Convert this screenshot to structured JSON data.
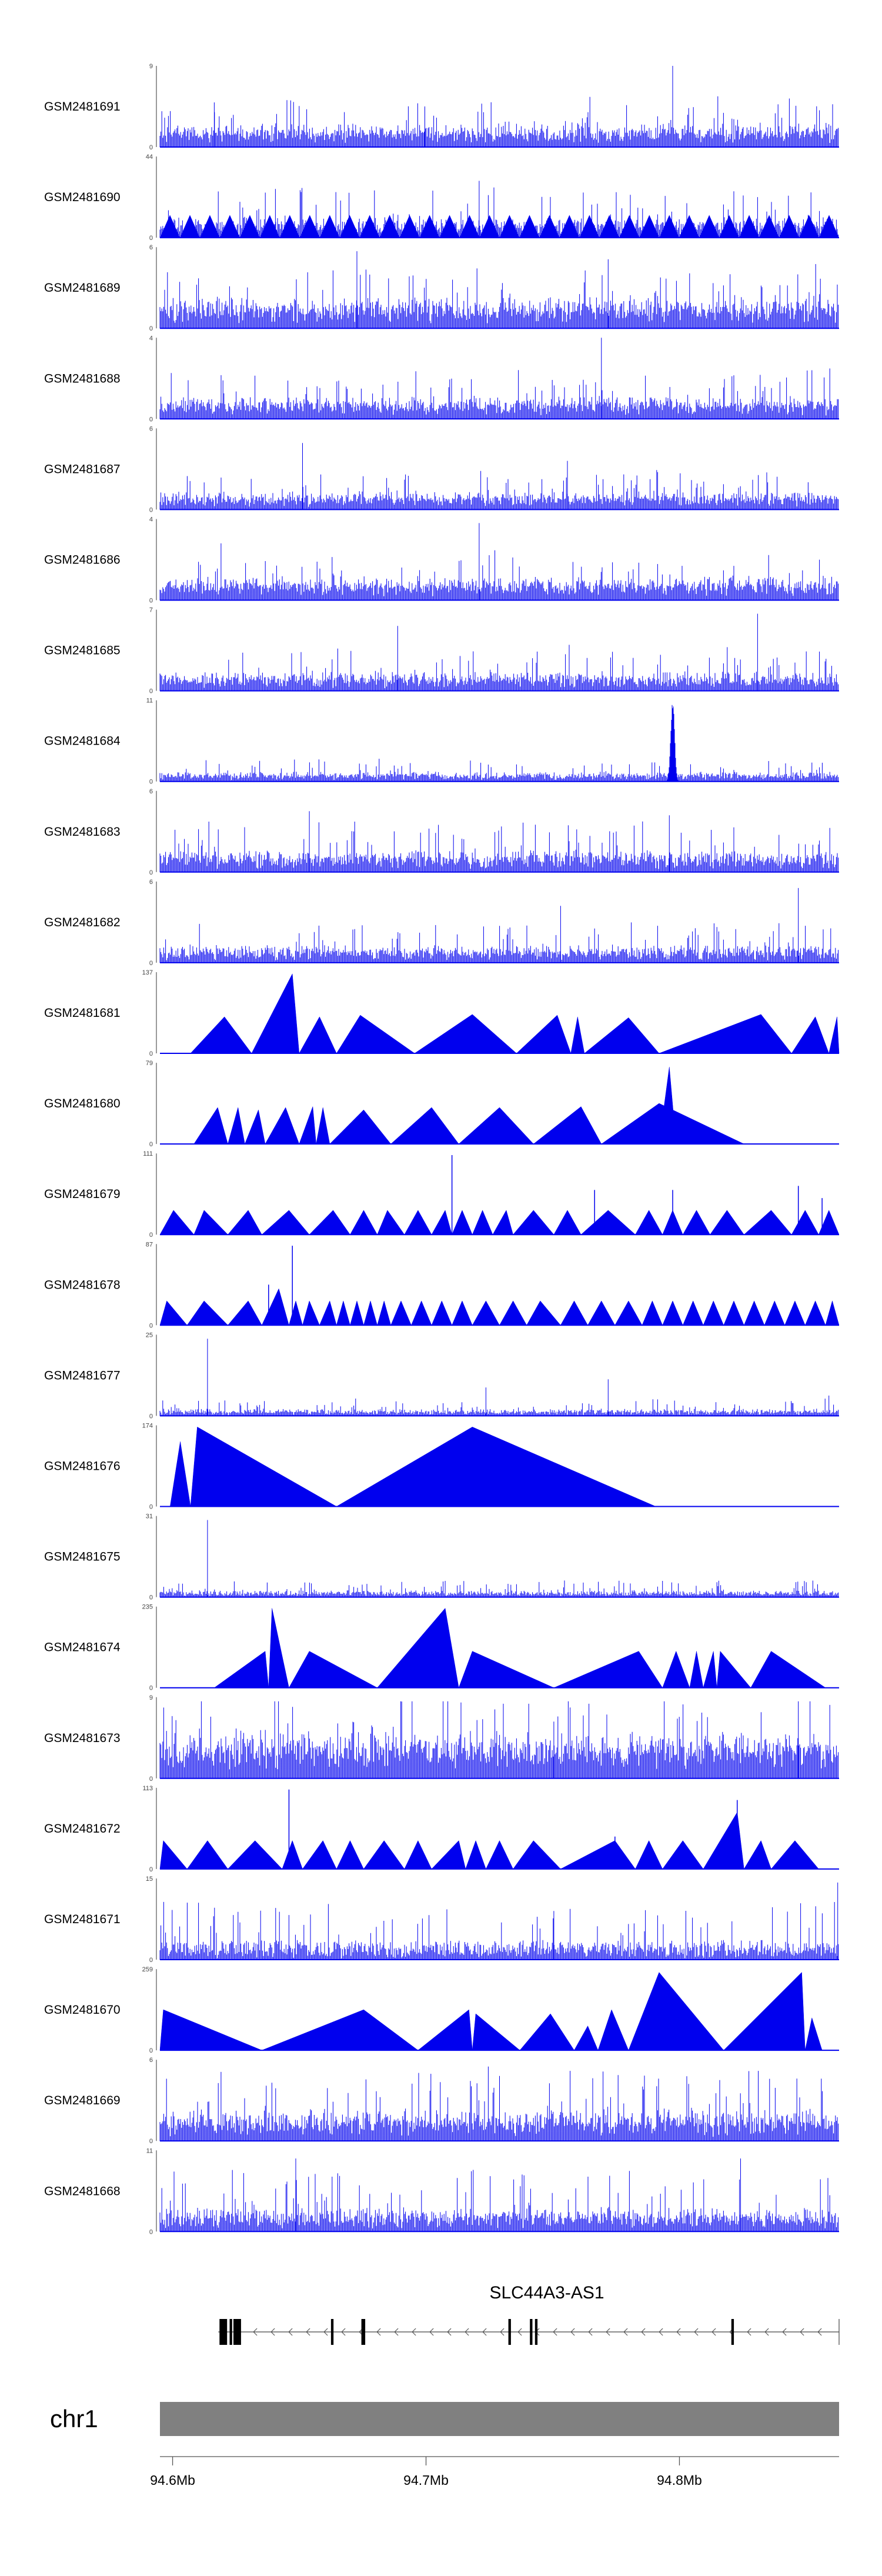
{
  "chart_data": {
    "type": "area",
    "title": "",
    "tracks": [
      {
        "name": "GSM2481691",
        "ymax": "9",
        "ymin": "0",
        "style": "dense",
        "seed": 11,
        "base": 0.13,
        "noise": 0.22,
        "spikes": [
          [
            0.755,
            1.0
          ],
          [
            0.08,
            0.55
          ],
          [
            0.39,
            0.5
          ]
        ]
      },
      {
        "name": "GSM2481690",
        "ymax": "44",
        "ymin": "0",
        "style": "mixed",
        "seed": 12,
        "base": 0.08,
        "noise": 0.25,
        "spikes": [
          [
            0.17,
            0.6
          ],
          [
            0.47,
            0.7
          ],
          [
            0.88,
            0.5
          ]
        ]
      },
      {
        "name": "GSM2481689",
        "ymax": "6",
        "ymin": "0",
        "style": "dense",
        "seed": 13,
        "base": 0.18,
        "noise": 0.28,
        "spikes": [
          [
            0.29,
            0.95
          ],
          [
            0.66,
            0.85
          ]
        ]
      },
      {
        "name": "GSM2481688",
        "ymax": "4",
        "ymin": "0",
        "style": "dense",
        "seed": 14,
        "base": 0.12,
        "noise": 0.22,
        "spikes": [
          [
            0.65,
            1.0
          ],
          [
            0.96,
            0.6
          ]
        ]
      },
      {
        "name": "GSM2481687",
        "ymax": "6",
        "ymin": "0",
        "style": "dense",
        "seed": 15,
        "base": 0.1,
        "noise": 0.18,
        "spikes": [
          [
            0.21,
            0.82
          ],
          [
            0.6,
            0.6
          ]
        ]
      },
      {
        "name": "GSM2481686",
        "ymax": "4",
        "ymin": "0",
        "style": "dense",
        "seed": 16,
        "base": 0.14,
        "noise": 0.2,
        "spikes": [
          [
            0.47,
            0.95
          ],
          [
            0.09,
            0.7
          ]
        ]
      },
      {
        "name": "GSM2481685",
        "ymax": "7",
        "ymin": "0",
        "style": "dense",
        "seed": 17,
        "base": 0.09,
        "noise": 0.22,
        "spikes": [
          [
            0.88,
            0.95
          ],
          [
            0.35,
            0.8
          ]
        ]
      },
      {
        "name": "GSM2481684",
        "ymax": "11",
        "ymin": "0",
        "style": "dense",
        "seed": 18,
        "base": 0.05,
        "noise": 0.1,
        "peak": [
          0.755,
          1.0
        ]
      },
      {
        "name": "GSM2481683",
        "ymax": "6",
        "ymin": "0",
        "style": "dense",
        "seed": 19,
        "base": 0.1,
        "noise": 0.25,
        "spikes": [
          [
            0.22,
            0.75
          ],
          [
            0.75,
            0.7
          ]
        ]
      },
      {
        "name": "GSM2481682",
        "ymax": "6",
        "ymin": "0",
        "style": "dense",
        "seed": 20,
        "base": 0.08,
        "noise": 0.2,
        "spikes": [
          [
            0.94,
            0.92
          ],
          [
            0.59,
            0.7
          ]
        ]
      },
      {
        "name": "GSM2481681",
        "ymax": "137",
        "ymin": "0",
        "style": "triangles",
        "seed": 21,
        "peaks": [
          [
            0.045,
            0.095,
            0.135,
            0.45
          ],
          [
            0.135,
            0.195,
            0.205,
            0.98
          ],
          [
            0.205,
            0.235,
            0.26,
            0.45
          ],
          [
            0.26,
            0.295,
            0.375,
            0.47
          ],
          [
            0.375,
            0.46,
            0.525,
            0.48
          ],
          [
            0.525,
            0.585,
            0.605,
            0.47
          ],
          [
            0.605,
            0.615,
            0.625,
            0.45
          ],
          [
            0.625,
            0.69,
            0.735,
            0.44
          ],
          [
            0.735,
            0.885,
            0.93,
            0.48
          ],
          [
            0.93,
            0.965,
            0.985,
            0.45
          ],
          [
            0.985,
            0.997,
            1.0,
            0.45
          ]
        ]
      },
      {
        "name": "GSM2481680",
        "ymax": "79",
        "ymin": "0",
        "style": "triangles",
        "seed": 22,
        "peaks": [
          [
            0.05,
            0.085,
            0.1,
            0.45
          ],
          [
            0.1,
            0.115,
            0.125,
            0.45
          ],
          [
            0.125,
            0.145,
            0.155,
            0.42
          ],
          [
            0.155,
            0.185,
            0.205,
            0.45
          ],
          [
            0.205,
            0.225,
            0.23,
            0.46
          ],
          [
            0.23,
            0.24,
            0.25,
            0.45
          ],
          [
            0.25,
            0.3,
            0.34,
            0.42
          ],
          [
            0.34,
            0.4,
            0.44,
            0.45
          ],
          [
            0.44,
            0.5,
            0.55,
            0.45
          ],
          [
            0.55,
            0.62,
            0.65,
            0.46
          ],
          [
            0.65,
            0.735,
            0.86,
            0.5
          ],
          [
            0.735,
            0.75,
            0.76,
            0.95
          ]
        ]
      },
      {
        "name": "GSM2481679",
        "ymax": "111",
        "ymin": "0",
        "style": "triangles",
        "seed": 23,
        "peaks": [
          [
            0.0,
            0.02,
            0.05,
            0.3
          ],
          [
            0.05,
            0.065,
            0.1,
            0.3
          ],
          [
            0.1,
            0.13,
            0.15,
            0.3
          ],
          [
            0.15,
            0.19,
            0.22,
            0.3
          ],
          [
            0.22,
            0.255,
            0.28,
            0.3
          ],
          [
            0.28,
            0.3,
            0.32,
            0.3
          ],
          [
            0.32,
            0.335,
            0.36,
            0.3
          ],
          [
            0.36,
            0.38,
            0.4,
            0.3
          ],
          [
            0.4,
            0.42,
            0.43,
            0.3
          ],
          [
            0.43,
            0.445,
            0.46,
            0.3
          ],
          [
            0.46,
            0.475,
            0.49,
            0.3
          ],
          [
            0.49,
            0.51,
            0.52,
            0.3
          ],
          [
            0.52,
            0.55,
            0.58,
            0.3
          ],
          [
            0.58,
            0.6,
            0.62,
            0.3
          ],
          [
            0.62,
            0.66,
            0.7,
            0.3
          ],
          [
            0.7,
            0.72,
            0.74,
            0.3
          ],
          [
            0.74,
            0.755,
            0.77,
            0.3
          ],
          [
            0.77,
            0.79,
            0.81,
            0.3
          ],
          [
            0.81,
            0.835,
            0.86,
            0.3
          ],
          [
            0.86,
            0.9,
            0.93,
            0.3
          ],
          [
            0.93,
            0.95,
            0.97,
            0.3
          ],
          [
            0.97,
            0.985,
            1.0,
            0.3
          ]
        ],
        "spikes": [
          [
            0.43,
            0.98
          ],
          [
            0.64,
            0.55
          ],
          [
            0.755,
            0.55
          ],
          [
            0.94,
            0.6
          ],
          [
            0.975,
            0.45
          ]
        ]
      },
      {
        "name": "GSM2481678",
        "ymax": "87",
        "ymin": "0",
        "style": "triangles",
        "seed": 24,
        "peaks": [
          [
            0.0,
            0.01,
            0.04,
            0.3
          ],
          [
            0.04,
            0.065,
            0.1,
            0.3
          ],
          [
            0.1,
            0.13,
            0.15,
            0.3
          ],
          [
            0.15,
            0.175,
            0.19,
            0.45
          ],
          [
            0.19,
            0.2,
            0.21,
            0.3
          ],
          [
            0.21,
            0.22,
            0.235,
            0.3
          ],
          [
            0.235,
            0.25,
            0.26,
            0.3
          ],
          [
            0.26,
            0.27,
            0.28,
            0.3
          ],
          [
            0.28,
            0.29,
            0.3,
            0.3
          ],
          [
            0.3,
            0.31,
            0.32,
            0.3
          ],
          [
            0.32,
            0.33,
            0.34,
            0.3
          ],
          [
            0.34,
            0.355,
            0.37,
            0.3
          ],
          [
            0.37,
            0.385,
            0.4,
            0.3
          ],
          [
            0.4,
            0.415,
            0.43,
            0.3
          ],
          [
            0.43,
            0.445,
            0.46,
            0.3
          ],
          [
            0.46,
            0.48,
            0.5,
            0.3
          ],
          [
            0.5,
            0.52,
            0.54,
            0.3
          ],
          [
            0.54,
            0.56,
            0.59,
            0.3
          ],
          [
            0.59,
            0.61,
            0.63,
            0.3
          ],
          [
            0.63,
            0.65,
            0.67,
            0.3
          ],
          [
            0.67,
            0.69,
            0.71,
            0.3
          ],
          [
            0.71,
            0.725,
            0.74,
            0.3
          ],
          [
            0.74,
            0.755,
            0.77,
            0.3
          ],
          [
            0.77,
            0.785,
            0.8,
            0.3
          ],
          [
            0.8,
            0.815,
            0.83,
            0.3
          ],
          [
            0.83,
            0.845,
            0.86,
            0.3
          ],
          [
            0.86,
            0.875,
            0.89,
            0.3
          ],
          [
            0.89,
            0.905,
            0.92,
            0.3
          ],
          [
            0.92,
            0.935,
            0.95,
            0.3
          ],
          [
            0.95,
            0.965,
            0.98,
            0.3
          ],
          [
            0.98,
            0.99,
            1.0,
            0.3
          ]
        ],
        "spikes": [
          [
            0.195,
            0.98
          ],
          [
            0.16,
            0.5
          ]
        ]
      },
      {
        "name": "GSM2481677",
        "ymax": "25",
        "ymin": "0",
        "style": "dense",
        "seed": 25,
        "base": 0.03,
        "noise": 0.08,
        "spikes": [
          [
            0.07,
            0.95
          ],
          [
            0.48,
            0.35
          ],
          [
            0.66,
            0.45
          ],
          [
            0.985,
            0.25
          ]
        ]
      },
      {
        "name": "GSM2481676",
        "ymax": "174",
        "ymin": "0",
        "style": "triangles",
        "seed": 26,
        "peaks": [
          [
            0.015,
            0.03,
            0.045,
            0.8
          ],
          [
            0.045,
            0.055,
            0.26,
            0.98
          ],
          [
            0.26,
            0.46,
            0.73,
            0.98
          ]
        ]
      },
      {
        "name": "GSM2481675",
        "ymax": "31",
        "ymin": "0",
        "style": "dense",
        "seed": 27,
        "base": 0.03,
        "noise": 0.08,
        "spikes": [
          [
            0.07,
            0.95
          ],
          [
            0.42,
            0.2
          ],
          [
            0.74,
            0.2
          ]
        ]
      },
      {
        "name": "GSM2481674",
        "ymax": "235",
        "ymin": "0",
        "style": "triangles",
        "seed": 28,
        "peaks": [
          [
            0.08,
            0.155,
            0.16,
            0.45
          ],
          [
            0.16,
            0.165,
            0.19,
            0.98
          ],
          [
            0.19,
            0.22,
            0.32,
            0.45
          ],
          [
            0.32,
            0.42,
            0.44,
            0.98
          ],
          [
            0.44,
            0.46,
            0.58,
            0.45
          ],
          [
            0.58,
            0.705,
            0.74,
            0.45
          ],
          [
            0.74,
            0.76,
            0.78,
            0.45
          ],
          [
            0.78,
            0.79,
            0.8,
            0.45
          ],
          [
            0.8,
            0.815,
            0.82,
            0.45
          ],
          [
            0.82,
            0.825,
            0.87,
            0.45
          ],
          [
            0.87,
            0.9,
            0.98,
            0.45
          ]
        ]
      },
      {
        "name": "GSM2481673",
        "ymax": "9",
        "ymin": "0",
        "style": "dense",
        "seed": 29,
        "base": 0.3,
        "noise": 0.35,
        "spikes": [
          [
            0.94,
            0.95
          ],
          [
            0.58,
            0.7
          ]
        ]
      },
      {
        "name": "GSM2481672",
        "ymax": "113",
        "ymin": "0",
        "style": "triangles",
        "seed": 30,
        "peaks": [
          [
            0.0,
            0.005,
            0.04,
            0.35
          ],
          [
            0.04,
            0.07,
            0.1,
            0.35
          ],
          [
            0.1,
            0.14,
            0.18,
            0.35
          ],
          [
            0.18,
            0.195,
            0.21,
            0.35
          ],
          [
            0.21,
            0.24,
            0.26,
            0.35
          ],
          [
            0.26,
            0.28,
            0.3,
            0.35
          ],
          [
            0.3,
            0.33,
            0.36,
            0.35
          ],
          [
            0.36,
            0.38,
            0.4,
            0.35
          ],
          [
            0.4,
            0.44,
            0.45,
            0.35
          ],
          [
            0.45,
            0.465,
            0.48,
            0.35
          ],
          [
            0.48,
            0.5,
            0.52,
            0.35
          ],
          [
            0.52,
            0.55,
            0.59,
            0.35
          ],
          [
            0.59,
            0.67,
            0.7,
            0.35
          ],
          [
            0.7,
            0.72,
            0.74,
            0.35
          ],
          [
            0.74,
            0.77,
            0.8,
            0.35
          ],
          [
            0.8,
            0.85,
            0.86,
            0.7
          ],
          [
            0.86,
            0.885,
            0.9,
            0.35
          ],
          [
            0.9,
            0.935,
            0.97,
            0.35
          ]
        ],
        "spikes": [
          [
            0.19,
            0.98
          ],
          [
            0.85,
            0.85
          ],
          [
            0.67,
            0.4
          ]
        ]
      },
      {
        "name": "GSM2481671",
        "ymax": "15",
        "ymin": "0",
        "style": "dense",
        "seed": 31,
        "base": 0.05,
        "noise": 0.3,
        "spikes": [
          [
            0.998,
            0.95
          ],
          [
            0.19,
            0.55
          ],
          [
            0.58,
            0.6
          ]
        ]
      },
      {
        "name": "GSM2481670",
        "ymax": "259",
        "ymin": "0",
        "style": "triangles",
        "seed": 32,
        "peaks": [
          [
            0.0,
            0.005,
            0.15,
            0.5
          ],
          [
            0.15,
            0.3,
            0.38,
            0.5
          ],
          [
            0.38,
            0.455,
            0.46,
            0.5
          ],
          [
            0.46,
            0.465,
            0.53,
            0.45
          ],
          [
            0.53,
            0.575,
            0.61,
            0.45
          ],
          [
            0.61,
            0.63,
            0.645,
            0.3
          ],
          [
            0.645,
            0.665,
            0.69,
            0.5
          ],
          [
            0.69,
            0.735,
            0.83,
            0.96
          ],
          [
            0.83,
            0.945,
            0.95,
            0.96
          ],
          [
            0.95,
            0.96,
            0.975,
            0.4
          ]
        ]
      },
      {
        "name": "GSM2481669",
        "ymax": "6",
        "ymin": "0",
        "style": "dense",
        "seed": 33,
        "base": 0.15,
        "noise": 0.35,
        "spikes": [
          [
            0.09,
            0.85
          ],
          [
            0.5,
            0.8
          ]
        ]
      },
      {
        "name": "GSM2481668",
        "ymax": "11",
        "ymin": "0",
        "style": "dense",
        "seed": 34,
        "base": 0.1,
        "noise": 0.3,
        "spikes": [
          [
            0.855,
            0.9
          ],
          [
            0.2,
            0.9
          ]
        ]
      }
    ],
    "gene": {
      "label": "SLC44A3-AS1",
      "strand": "-",
      "exons": [
        [
          94.6185,
          94.6215
        ],
        [
          94.6225,
          94.6235
        ],
        [
          94.624,
          94.6255
        ],
        [
          94.6255,
          94.627
        ],
        [
          94.6625,
          94.6635
        ],
        [
          94.675,
          94.676
        ],
        [
          94.6745,
          94.6755
        ],
        [
          94.7325,
          94.7335
        ],
        [
          94.741,
          94.742
        ],
        [
          94.743,
          94.744
        ],
        [
          94.8205,
          94.8215
        ]
      ],
      "start": 94.618,
      "end": 94.863
    },
    "chromosome": {
      "label": "chr1"
    },
    "xaxis": {
      "range": [
        94.595,
        94.863
      ],
      "ticks": [
        94.6,
        94.7,
        94.8
      ],
      "tick_labels": [
        "94.6Mb",
        "94.7Mb",
        "94.8Mb"
      ]
    }
  }
}
